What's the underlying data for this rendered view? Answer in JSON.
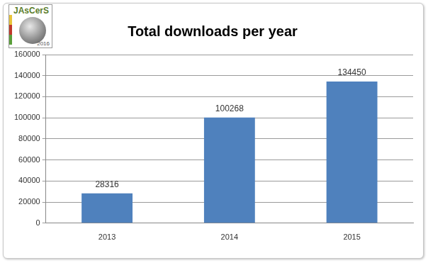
{
  "chart_data": {
    "type": "bar",
    "title": "Total downloads per year",
    "categories": [
      "2013",
      "2014",
      "2015"
    ],
    "values": [
      28316,
      100268,
      134450
    ],
    "color": "#4f81bd",
    "ylim": [
      0,
      160000
    ],
    "yticks": [
      0,
      20000,
      40000,
      60000,
      80000,
      100000,
      120000,
      140000,
      160000
    ],
    "grid": true,
    "data_labels": true,
    "annotations": [
      "JAsCerS",
      "2016"
    ]
  }
}
